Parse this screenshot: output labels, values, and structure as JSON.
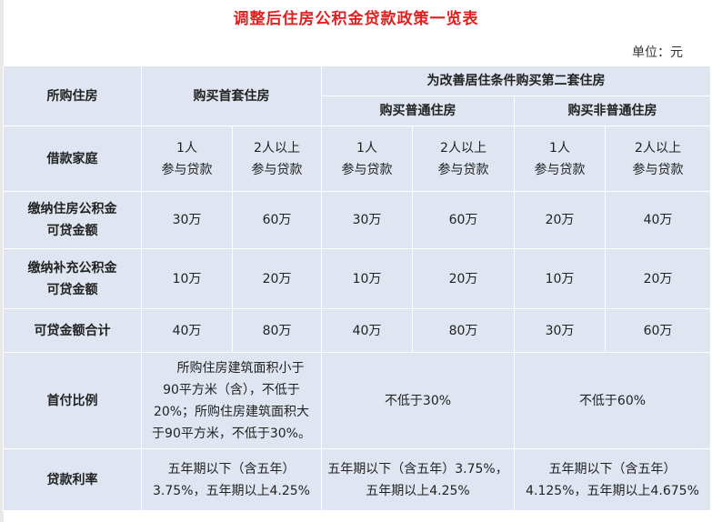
{
  "title": "调整后住房公积金贷款政策一览表",
  "unit": "单位：元",
  "table": {
    "row_headers": [
      "所购住房",
      "借款家庭",
      "缴纳住房公积金可贷金额",
      "缴纳补充公积金可贷金额",
      "可贷金额合计",
      "首付比例",
      "贷款利率"
    ],
    "row_headers_lines": {
      "housing_fund": [
        "缴纳住房公积金",
        "可贷金额"
      ],
      "supplementary_fund": [
        "缴纳补充公积金",
        "可贷金额"
      ]
    },
    "first_home": "购买首套住房",
    "second_home": "为改善居住条件购买第二套住房",
    "second_ordinary": "购买普通住房",
    "second_non_ordinary": "购买非普通住房",
    "one_person": [
      "1人",
      "参与贷款"
    ],
    "two_plus": [
      "2人以上",
      "参与贷款"
    ],
    "housing_fund_amounts": [
      "30万",
      "60万",
      "30万",
      "60万",
      "20万",
      "40万"
    ],
    "supplementary_amounts": [
      "10万",
      "20万",
      "10万",
      "20万",
      "10万",
      "20万"
    ],
    "total_amounts": [
      "40万",
      "80万",
      "40万",
      "80万",
      "30万",
      "60万"
    ],
    "down_payment": {
      "first_home_lines": [
        "所购住房建筑面积小于",
        "90平方米（含），不低于",
        "20%；所购住房建筑面积大",
        "于90平方米，不低于30%。"
      ],
      "ordinary": "不低于30%",
      "non_ordinary": "不低于60%"
    },
    "interest_rate": {
      "first_home_lines": [
        "五年期以下（含五年）",
        "3.75%，五年期以上4.25%"
      ],
      "ordinary_lines": [
        "五年期以下（含五年）3.75%，",
        "五年期以上4.25%"
      ],
      "non_ordinary_lines": [
        "五年期以下（含五年）",
        "4.125%，五年期以上4.675%"
      ]
    }
  },
  "colors": {
    "title": "#e02020",
    "row_header": "#4f81bd",
    "cell_blue": "#dfe6f1",
    "highlight": "#ffd54f",
    "cell_grey": "#e6e6e6"
  }
}
